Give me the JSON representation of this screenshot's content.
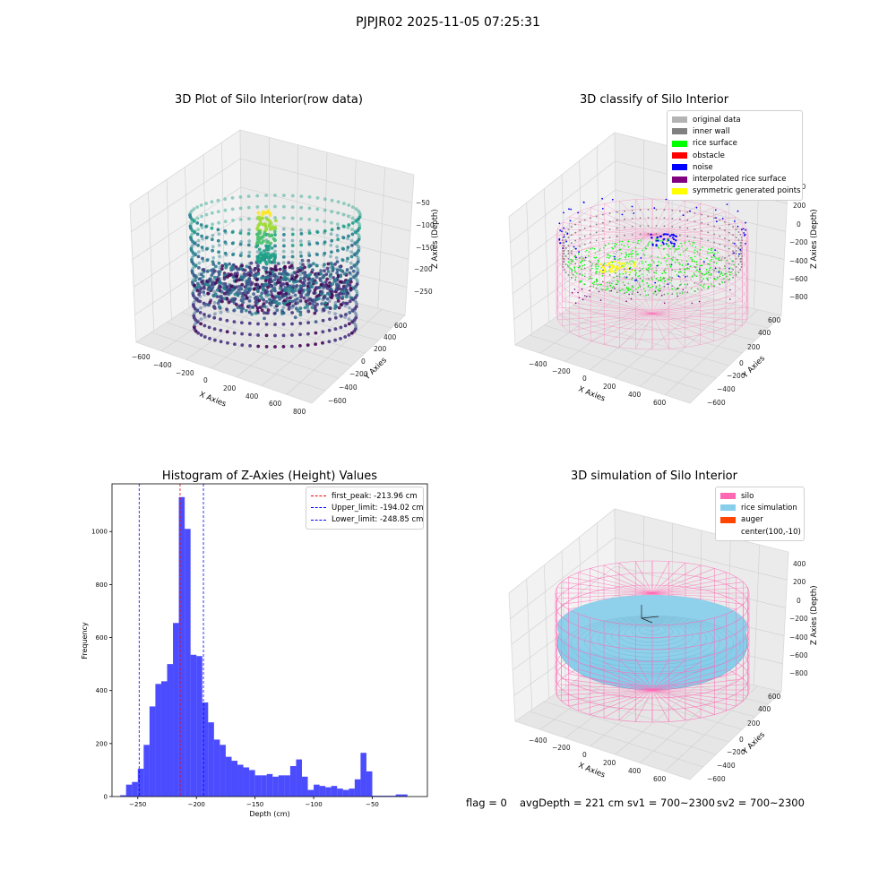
{
  "suptitle": "PJPJR02 2025-11-05 07:25:31",
  "chart_data": [
    {
      "type": "scatter",
      "title": "3D Plot of Silo Interior(row data)",
      "projection": "3d",
      "xlabel": "X Axies",
      "ylabel": "Y Axies",
      "zlabel": "Z Axies (Depth)",
      "xticks": [
        "−600",
        "−400",
        "−200",
        "0",
        "200",
        "400",
        "600",
        "800"
      ],
      "yticks": [
        "−600",
        "−400",
        "−200",
        "0",
        "200",
        "400",
        "600"
      ],
      "zticks": [
        "−50",
        "−100",
        "−150",
        "−200",
        "−250"
      ],
      "colormap": "viridis"
    },
    {
      "type": "scatter",
      "title": "3D classify of Silo Interior",
      "projection": "3d",
      "xlabel": "X Axies",
      "ylabel": "Y Axies",
      "zlabel": "Z Axies (Depth)",
      "xticks": [
        "−400",
        "−200",
        "0",
        "200",
        "400",
        "600"
      ],
      "yticks": [
        "−600",
        "−400",
        "−200",
        "0",
        "200",
        "400",
        "600"
      ],
      "zticks": [
        "200",
        "0",
        "−200",
        "−400",
        "−600",
        "−800"
      ],
      "zticks_top": "400",
      "legend": [
        {
          "label": "original data",
          "color": "#b3b3b3"
        },
        {
          "label": "inner wall",
          "color": "#808080"
        },
        {
          "label": "rice surface",
          "color": "#00ff00"
        },
        {
          "label": "obstacle",
          "color": "#ff0000"
        },
        {
          "label": "noise",
          "color": "#0000ff"
        },
        {
          "label": "interpolated rice surface",
          "color": "#800080"
        },
        {
          "label": "symmetric generated points",
          "color": "#ffff00"
        }
      ],
      "legend_position": "upper right"
    },
    {
      "type": "bar",
      "title": "Histogram of Z-Axies (Height) Values",
      "xlabel": "Depth (cm)",
      "ylabel": "Frequency",
      "xlim": [
        -272,
        -3
      ],
      "ylim": [
        0,
        1180
      ],
      "xticks": [
        -250,
        -200,
        -150,
        -100,
        -50
      ],
      "xtick_labels": [
        "−250",
        "−200",
        "−150",
        "−100",
        "−50"
      ],
      "yticks": [
        0,
        200,
        400,
        600,
        800,
        1000
      ],
      "bin_start": -265,
      "bin_width": 5,
      "values": [
        5,
        45,
        55,
        105,
        195,
        340,
        425,
        435,
        500,
        655,
        1130,
        1010,
        535,
        530,
        355,
        280,
        215,
        195,
        150,
        135,
        120,
        110,
        100,
        80,
        80,
        85,
        75,
        80,
        80,
        115,
        140,
        75,
        25,
        45,
        40,
        35,
        40,
        30,
        25,
        30,
        65,
        165,
        95,
        3,
        3,
        3,
        3,
        8,
        8
      ],
      "color": "#0000ff",
      "vlines": [
        {
          "x": -213.96,
          "label": "first_peak: -213.96 cm",
          "color": "#ff0000"
        },
        {
          "x": -194.02,
          "label": "Upper_limit: -194.02 cm",
          "color": "#0000ff"
        },
        {
          "x": -248.85,
          "label": "Lower_limit: -248.85 cm",
          "color": "#0000ff"
        }
      ],
      "legend_position": "upper right"
    },
    {
      "type": "scatter",
      "title": "3D simulation of Silo Interior",
      "projection": "3d",
      "xlabel": "X Axies",
      "ylabel": "Y Axies",
      "zlabel": "Z Axies (Depth)",
      "xticks": [
        "−400",
        "−200",
        "0",
        "200",
        "400",
        "600"
      ],
      "yticks": [
        "−600",
        "−400",
        "−200",
        "0",
        "200",
        "400",
        "600"
      ],
      "zticks": [
        "400",
        "200",
        "0",
        "−200",
        "−400",
        "−600",
        "−800"
      ],
      "legend": [
        {
          "label": "silo",
          "color": "#ff69b4"
        },
        {
          "label": "rice simulation",
          "color": "#87ceeb"
        },
        {
          "label": "auger",
          "color": "#ff4500"
        },
        {
          "label": "center(100,-10)",
          "color": "#ffffff"
        }
      ],
      "legend_position": "upper right"
    }
  ],
  "status": {
    "flag": "flag = 0",
    "avg": "avgDepth = 221 cm",
    "sv1": "sv1 = 700~2300",
    "sv2": "sv2 = 700~2300"
  }
}
